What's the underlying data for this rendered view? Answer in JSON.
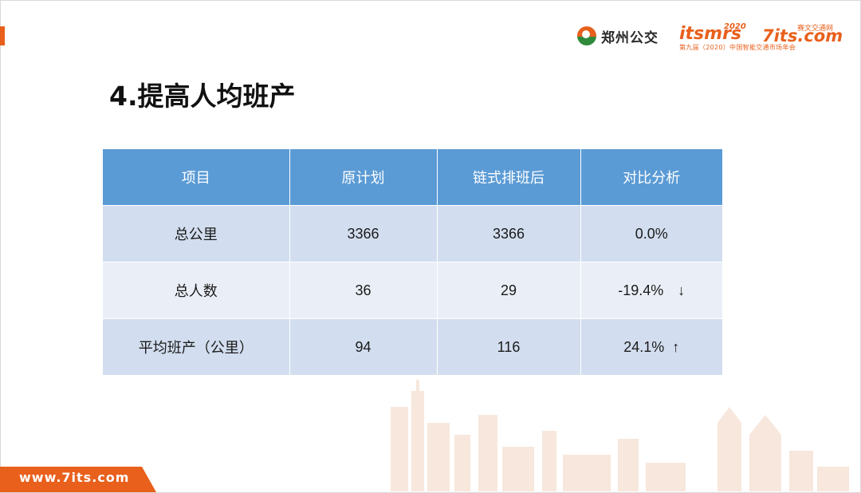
{
  "header": {
    "logo_zz_text": "郑州公交",
    "logo_its_word": "itsmrs",
    "logo_its_year": "2020",
    "logo_7its_tag": "赛文交通网",
    "logo_7its_word": "7its.com",
    "logo_subline": "第九届（2020）中国智能交通市场年会"
  },
  "page": {
    "title": "4.提高人均班产"
  },
  "table": {
    "headers": [
      "项目",
      "原计划",
      "链式排班后",
      "对比分析"
    ],
    "rows": [
      {
        "item": "总公里",
        "plan": "3366",
        "after": "3366",
        "compare": "0.0%",
        "arrow": ""
      },
      {
        "item": "总人数",
        "plan": "36",
        "after": "29",
        "compare": "-19.4%",
        "arrow": "↓"
      },
      {
        "item": "平均班产（公里）",
        "plan": "94",
        "after": "116",
        "compare": "24.1%",
        "arrow": "↑"
      }
    ]
  },
  "footer": {
    "url": "www.7its.com"
  },
  "colors": {
    "accent": "#e8601c",
    "table_header": "#5b9bd5",
    "row_dark": "#d2deef",
    "row_light": "#eaeff7"
  }
}
